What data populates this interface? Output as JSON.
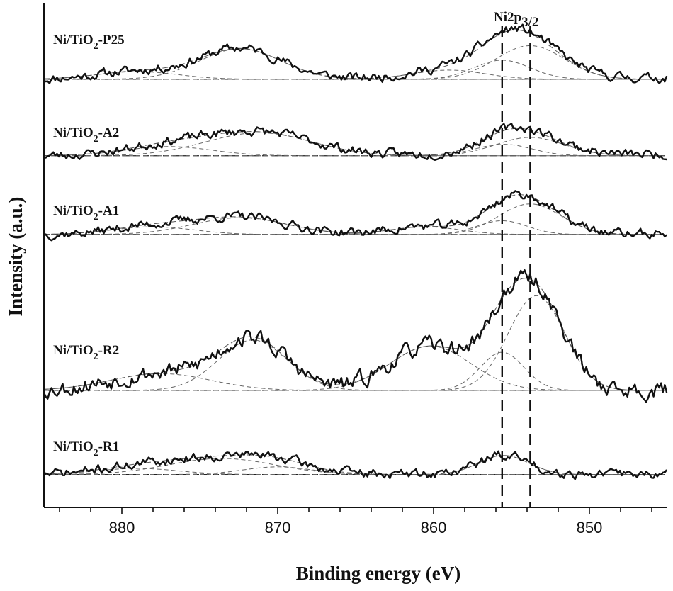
{
  "chart_data": {
    "type": "line",
    "title": "",
    "xlabel": "Binding energy (eV)",
    "ylabel": "Intensity (a.u.)",
    "xlim": [
      885,
      845
    ],
    "x_reversed": true,
    "xticks": [
      880,
      870,
      860,
      850
    ],
    "xtick_labels": [
      "880",
      "870",
      "860",
      "850"
    ],
    "y_ticks_shown": false,
    "grid": false,
    "legend": "none",
    "annotation": {
      "label_main": "Ni2p",
      "label_sub": "3/2",
      "reference_lines_eV": [
        855.6,
        853.8
      ]
    },
    "series": [
      {
        "name": "Ni/TiO2-P25",
        "label_main": "Ni/TiO",
        "label_sub": "2",
        "label_suffix": "-P25",
        "offset": 4.95,
        "noise": 0.05,
        "seed": 11,
        "baseline_tail": 0.02,
        "peaks": [
          {
            "center": 879.0,
            "height": 0.1,
            "width": 2.6
          },
          {
            "center": 872.4,
            "height": 0.4,
            "width": 2.6
          },
          {
            "center": 859.0,
            "height": 0.12,
            "width": 2.3
          },
          {
            "center": 855.6,
            "height": 0.25,
            "width": 1.8
          },
          {
            "center": 853.8,
            "height": 0.44,
            "width": 2.2
          }
        ]
      },
      {
        "name": "Ni/TiO2-A2",
        "label_main": "Ni/TiO",
        "label_sub": "2",
        "label_suffix": "-A2",
        "offset": 3.95,
        "noise": 0.05,
        "seed": 23,
        "baseline_tail": 0.02,
        "peaks": [
          {
            "center": 877.0,
            "height": 0.12,
            "width": 2.8
          },
          {
            "center": 871.2,
            "height": 0.3,
            "width": 3.4
          },
          {
            "center": 855.5,
            "height": 0.15,
            "width": 1.8
          },
          {
            "center": 853.8,
            "height": 0.24,
            "width": 2.2
          }
        ]
      },
      {
        "name": "Ni/TiO2-A1",
        "label_main": "Ni/TiO",
        "label_sub": "2",
        "label_suffix": "-A1",
        "offset": 2.92,
        "noise": 0.05,
        "seed": 37,
        "baseline_tail": 0.01,
        "peaks": [
          {
            "center": 878.0,
            "height": 0.1,
            "width": 2.6
          },
          {
            "center": 872.4,
            "height": 0.22,
            "width": 3.0
          },
          {
            "center": 860.5,
            "height": 0.1,
            "width": 2.2
          },
          {
            "center": 855.6,
            "height": 0.18,
            "width": 1.6
          },
          {
            "center": 853.8,
            "height": 0.4,
            "width": 2.0
          }
        ]
      },
      {
        "name": "Ni/TiO2-R2",
        "label_main": "Ni/TiO",
        "label_sub": "2",
        "label_suffix": "-R2",
        "offset": 0.88,
        "noise": 0.09,
        "seed": 53,
        "baseline_tail": 0.0,
        "peaks": [
          {
            "center": 877.5,
            "height": 0.22,
            "width": 3.2
          },
          {
            "center": 871.6,
            "height": 0.66,
            "width": 2.2
          },
          {
            "center": 860.2,
            "height": 0.58,
            "width": 2.6
          },
          {
            "center": 855.6,
            "height": 0.5,
            "width": 1.4
          },
          {
            "center": 853.4,
            "height": 1.24,
            "width": 1.8
          }
        ]
      },
      {
        "name": "Ni/TiO2-R1",
        "label_main": "Ni/TiO",
        "label_sub": "2",
        "label_suffix": "-R1",
        "offset": -0.22,
        "noise": 0.05,
        "seed": 71,
        "baseline_tail": 0.01,
        "peaks": [
          {
            "center": 879.0,
            "height": 0.08,
            "width": 2.6
          },
          {
            "center": 873.6,
            "height": 0.21,
            "width": 3.4
          },
          {
            "center": 870.0,
            "height": 0.1,
            "width": 2.2
          },
          {
            "center": 855.5,
            "height": 0.25,
            "width": 1.6
          }
        ]
      }
    ]
  }
}
